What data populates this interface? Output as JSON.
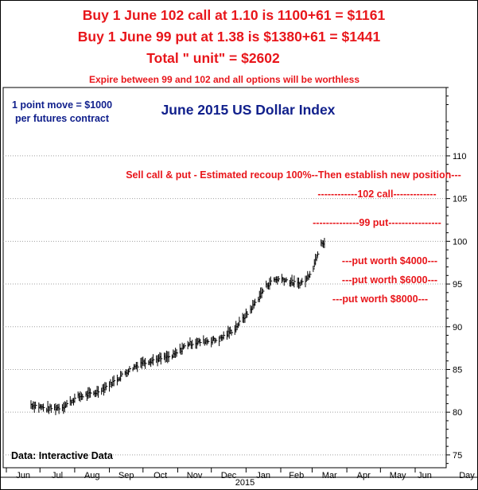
{
  "headline": {
    "line1": "Buy 1 June 102 call at 1.10 is 1100+61  = $1161",
    "line2": "Buy 1 June 99 put at 1.38 is $1380+61 = $1441",
    "line3": "Total \" unit\" = $2602",
    "line4": "Expire between 99 and 102 and all options will be worthless"
  },
  "note": {
    "line1": "1 point move = $1000",
    "line2": "per futures contract"
  },
  "source": "Data: Interactive Data",
  "annotations": {
    "sell": "Sell call & put - Estimated recoup 100%--Then establish new position---",
    "call": "------------102 call-------------",
    "put": "--------------99 put----------------",
    "worth4000": "---put worth $4000---",
    "worth6000": "---put worth $6000---",
    "worth8000": "---put worth $8000---"
  },
  "colors": {
    "accent_red": "#e8161b",
    "title_navy": "#11208c",
    "bars": "#000000",
    "grid": "#a0a0a0"
  },
  "chart_data": {
    "type": "ohlc-bar",
    "title": "June 2015 US Dollar Index",
    "ylim": [
      73.5,
      118
    ],
    "y_ticks": [
      75,
      80,
      85,
      90,
      95,
      100,
      105,
      110
    ],
    "grid": true,
    "x_axis_ticks": [
      "Jun",
      "Jul",
      "Aug",
      "Sep",
      "Oct",
      "Nov",
      "Dec",
      "Jan",
      "Feb",
      "Mar",
      "Apr",
      "May",
      "Jun",
      "Day"
    ],
    "x_axis_year": "2015",
    "series": [
      {
        "name": "June 2015 US Dollar Index",
        "points": [
          {
            "date": "2014-06-23",
            "close": 80.9
          },
          {
            "date": "2014-07-07",
            "close": 80.4
          },
          {
            "date": "2014-07-21",
            "close": 80.6
          },
          {
            "date": "2014-08-04",
            "close": 81.8
          },
          {
            "date": "2014-08-18",
            "close": 82.2
          },
          {
            "date": "2014-09-01",
            "close": 83.2
          },
          {
            "date": "2014-09-15",
            "close": 84.6
          },
          {
            "date": "2014-09-29",
            "close": 85.8
          },
          {
            "date": "2014-10-13",
            "close": 86.2
          },
          {
            "date": "2014-10-27",
            "close": 86.5
          },
          {
            "date": "2014-11-10",
            "close": 88.0
          },
          {
            "date": "2014-11-24",
            "close": 88.3
          },
          {
            "date": "2014-12-08",
            "close": 88.5
          },
          {
            "date": "2014-12-22",
            "close": 89.8
          },
          {
            "date": "2015-01-05",
            "close": 92.0
          },
          {
            "date": "2015-01-19",
            "close": 94.8
          },
          {
            "date": "2015-01-26",
            "close": 95.5
          },
          {
            "date": "2015-02-02",
            "close": 95.6
          },
          {
            "date": "2015-02-16",
            "close": 95.0
          },
          {
            "date": "2015-02-23",
            "close": 95.4
          },
          {
            "date": "2015-03-02",
            "close": 97.0
          },
          {
            "date": "2015-03-09",
            "close": 100.0
          },
          {
            "date": "2015-03-12",
            "close": 99.8
          }
        ]
      }
    ]
  }
}
